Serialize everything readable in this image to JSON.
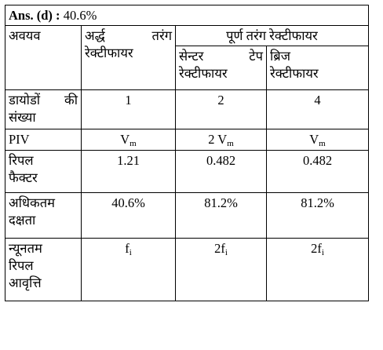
{
  "answer": {
    "label": "Ans. (d) :",
    "value": "40.6%"
  },
  "header": {
    "col_component": "अवयव",
    "half_wave": [
      "अर्द्ध तरंग",
      "रेक्टीफायर"
    ],
    "full_wave": "पूर्ण तरंग रेक्टीफायर",
    "center_tap": [
      "सेन्टर टेप",
      "रेक्टीफायर"
    ],
    "bridge": [
      "ब्रिज",
      "रेक्टीफायर"
    ]
  },
  "rows": {
    "diodes": {
      "label": [
        "डायोडों की",
        "संख्या"
      ],
      "half": "1",
      "center": "2",
      "bridge": "4"
    },
    "piv": {
      "label": "PIV",
      "half": "V",
      "half_sub": "m",
      "center": "2 V",
      "center_sub": "m",
      "bridge": "V",
      "bridge_sub": "m"
    },
    "ripple_factor": {
      "label": [
        "रिपल",
        "फैक्टर"
      ],
      "half": "1.21",
      "center": "0.482",
      "bridge": "0.482"
    },
    "max_efficiency": {
      "label": [
        "अधिकतम",
        "दक्षता"
      ],
      "half": "40.6%",
      "center": "81.2%",
      "bridge": "81.2%"
    },
    "min_ripple_freq": {
      "label": [
        "न्यूनतम",
        "रिपल",
        "आवृत्ति"
      ],
      "half": "f",
      "half_sub": "i",
      "center": "2f",
      "center_sub": "i",
      "bridge": "2f",
      "bridge_sub": "i"
    }
  }
}
